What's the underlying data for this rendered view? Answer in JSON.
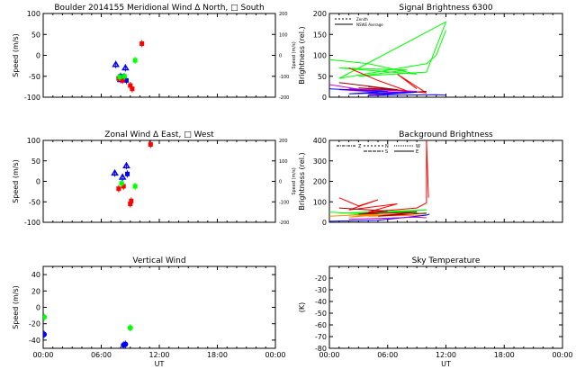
{
  "colors": {
    "blue": "#0000ff",
    "red": "#ff0000",
    "green": "#00ff00",
    "magenta": "#cc00cc",
    "darkred": "#990000",
    "orange": "#ff8800",
    "axis": "#000000"
  },
  "chart_data": [
    {
      "id": "meridional",
      "type": "scatter",
      "title": "Boulder   2014155     Meridional Wind   Δ North, □ South",
      "ylabel": "Speed (m/s)",
      "ylabel_right": "Speed (m/s)",
      "xlim": [
        0,
        24
      ],
      "ylim": [
        -100,
        100
      ],
      "yticks": [
        -100,
        -50,
        0,
        50,
        100
      ],
      "yticks_right": [
        "-200",
        "-100",
        "0",
        "100",
        "200"
      ],
      "show_xticklabels": false,
      "series": [
        {
          "color": "blue",
          "marker": "triangle",
          "points": [
            [
              7.5,
              -22
            ],
            [
              8.5,
              -30
            ],
            [
              8.3,
              -52
            ],
            [
              8.0,
              -58
            ]
          ]
        },
        {
          "color": "blue",
          "marker": "square",
          "points": [
            [
              8.0,
              -50
            ],
            [
              8.6,
              -60
            ]
          ]
        },
        {
          "color": "red",
          "marker": "square",
          "points": [
            [
              7.8,
              -55
            ],
            [
              8.2,
              -60
            ],
            [
              9.0,
              -72
            ],
            [
              9.2,
              -80
            ],
            [
              10.2,
              28
            ]
          ]
        },
        {
          "color": "green",
          "marker": "square",
          "points": [
            [
              7.9,
              -52
            ],
            [
              8.4,
              -50
            ],
            [
              9.5,
              -12
            ]
          ]
        }
      ]
    },
    {
      "id": "zonal",
      "type": "scatter",
      "title": "Zonal Wind     Δ East, □ West",
      "ylabel": "Speed (m/s)",
      "ylabel_right": "Speed (m/s)",
      "xlim": [
        0,
        24
      ],
      "ylim": [
        -100,
        100
      ],
      "yticks": [
        -100,
        -50,
        0,
        50,
        100
      ],
      "yticks_right": [
        "-200",
        "-100",
        "0",
        "100",
        "200"
      ],
      "show_xticklabels": false,
      "series": [
        {
          "color": "blue",
          "marker": "triangle",
          "points": [
            [
              7.4,
              20
            ],
            [
              8.6,
              38
            ],
            [
              8.2,
              10
            ]
          ]
        },
        {
          "color": "blue",
          "marker": "square",
          "points": [
            [
              8.7,
              18
            ]
          ]
        },
        {
          "color": "red",
          "marker": "square",
          "points": [
            [
              7.8,
              -18
            ],
            [
              8.3,
              -12
            ],
            [
              9.0,
              -55
            ],
            [
              9.1,
              -48
            ],
            [
              11.1,
              90
            ]
          ]
        },
        {
          "color": "green",
          "marker": "square",
          "points": [
            [
              8.1,
              -5
            ],
            [
              9.5,
              -12
            ]
          ]
        }
      ]
    },
    {
      "id": "vertical",
      "type": "scatter",
      "title": "Vertical Wind",
      "ylabel": "Speed (m/s)",
      "xlabel": "UT",
      "xlim": [
        0,
        24
      ],
      "ylim": [
        -50,
        50
      ],
      "yticks": [
        -40,
        -20,
        0,
        20,
        40
      ],
      "xticks": [
        "00:00",
        "06:00",
        "12:00",
        "18:00",
        "00:00"
      ],
      "show_xticklabels": true,
      "series": [
        {
          "color": "green",
          "marker": "circle",
          "points": [
            [
              0.1,
              -12
            ],
            [
              9.0,
              -25
            ]
          ]
        },
        {
          "color": "blue",
          "marker": "circle",
          "points": [
            [
              0.1,
              -33
            ],
            [
              8.3,
              -46
            ],
            [
              8.5,
              -45
            ]
          ]
        }
      ]
    },
    {
      "id": "signal",
      "type": "line",
      "title": "Signal Brightness       6300",
      "ylabel": "Brightness (rel.)",
      "xlim": [
        0,
        24
      ],
      "ylim": [
        0,
        200
      ],
      "yticks": [
        0,
        50,
        100,
        150,
        200
      ],
      "show_xticklabels": false,
      "legend": [
        "Zenith",
        "NSWE Average"
      ],
      "series": [
        {
          "color": "green",
          "points": [
            [
              0,
              90
            ],
            [
              4,
              80
            ],
            [
              9,
              55
            ],
            [
              1,
              70
            ],
            [
              8,
              65
            ],
            [
              3,
              50
            ],
            [
              10,
              60
            ],
            [
              12,
              180
            ],
            [
              1,
              45
            ],
            [
              10,
              80
            ],
            [
              11,
              100
            ],
            [
              12,
              160
            ]
          ]
        },
        {
          "color": "red",
          "points": [
            [
              2,
              70
            ],
            [
              5,
              40
            ],
            [
              8,
              15
            ],
            [
              4,
              25
            ],
            [
              10,
              10
            ],
            [
              7,
              55
            ],
            [
              9,
              20
            ]
          ]
        },
        {
          "color": "darkred",
          "points": [
            [
              1,
              35
            ],
            [
              7,
              18
            ],
            [
              3,
              22
            ],
            [
              9,
              12
            ],
            [
              6,
              8
            ],
            [
              10,
              14
            ]
          ]
        },
        {
          "color": "magenta",
          "points": [
            [
              0,
              30
            ],
            [
              5,
              12
            ],
            [
              1,
              18
            ],
            [
              8,
              10
            ],
            [
              2,
              20
            ],
            [
              9,
              14
            ],
            [
              4,
              6
            ]
          ]
        },
        {
          "color": "blue",
          "points": [
            [
              0,
              20
            ],
            [
              6,
              14
            ],
            [
              2,
              8
            ],
            [
              9,
              12
            ],
            [
              4,
              4
            ],
            [
              11,
              6
            ],
            [
              12,
              5
            ]
          ]
        }
      ]
    },
    {
      "id": "background",
      "type": "line",
      "title": "Background Brightness",
      "ylabel": "Brightness (rel.)",
      "xlim": [
        0,
        24
      ],
      "ylim": [
        0,
        400
      ],
      "yticks": [
        0,
        100,
        200,
        300,
        400
      ],
      "show_xticklabels": false,
      "legend": [
        "Z",
        "N",
        "S",
        "W",
        "E"
      ],
      "series": [
        {
          "color": "green",
          "points": [
            [
              0,
              50
            ],
            [
              4,
              40
            ],
            [
              9,
              55
            ],
            [
              2,
              35
            ],
            [
              10,
              60
            ],
            [
              1,
              45
            ],
            [
              8,
              50
            ],
            [
              10,
              40
            ]
          ]
        },
        {
          "color": "red",
          "points": [
            [
              1,
              120
            ],
            [
              3,
              80
            ],
            [
              5,
              110
            ],
            [
              2,
              60
            ],
            [
              7,
              90
            ],
            [
              4,
              50
            ],
            [
              9,
              70
            ],
            [
              10,
              95
            ],
            [
              10,
              400
            ],
            [
              10.2,
              120
            ]
          ]
        },
        {
          "color": "orange",
          "points": [
            [
              0,
              30
            ],
            [
              5,
              40
            ],
            [
              2,
              25
            ],
            [
              8,
              45
            ],
            [
              4,
              30
            ],
            [
              10,
              35
            ]
          ]
        },
        {
          "color": "darkred",
          "points": [
            [
              1,
              70
            ],
            [
              6,
              55
            ],
            [
              3,
              40
            ],
            [
              9,
              50
            ],
            [
              5,
              30
            ],
            [
              10,
              45
            ]
          ]
        },
        {
          "color": "blue",
          "points": [
            [
              0,
              5
            ],
            [
              5,
              10
            ],
            [
              9,
              30
            ],
            [
              10,
              35
            ],
            [
              10.3,
              40
            ]
          ]
        },
        {
          "color": "magenta",
          "points": [
            [
              2,
              15
            ],
            [
              6,
              20
            ],
            [
              9,
              25
            ],
            [
              10,
              22
            ]
          ]
        }
      ]
    },
    {
      "id": "skytemp",
      "type": "line",
      "title": "Sky Temperature",
      "ylabel": "(K)",
      "xlabel": "UT",
      "xlim": [
        0,
        24
      ],
      "ylim": [
        -80,
        -10
      ],
      "yticks": [
        -80,
        -70,
        -60,
        -50,
        -40,
        -30,
        -20
      ],
      "xticks": [
        "00:00",
        "06:00",
        "12:00",
        "18:00",
        "00:00"
      ],
      "show_xticklabels": true,
      "series": []
    }
  ]
}
